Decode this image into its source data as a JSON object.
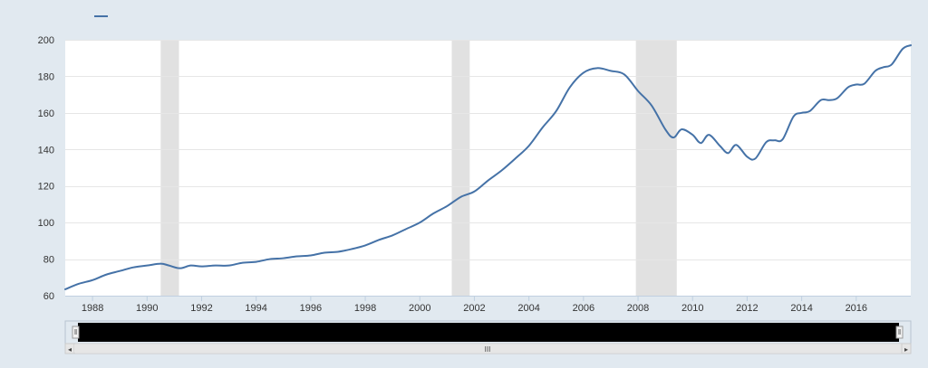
{
  "colors": {
    "page_background": "#e1e9f0",
    "plot_background": "#ffffff",
    "gridline": "#e6e6e6",
    "series_line": "#4572a7",
    "recession_band": "#e1e1e1",
    "navigator_fill": "#000000",
    "scrollbar_track": "#f2f2f2"
  },
  "navigator": {
    "handle_glyph": "‖",
    "scroll_left_icon": "◂",
    "scroll_right_icon": "▸",
    "scroll_grip": "III"
  },
  "chart_data": {
    "type": "line",
    "title": "",
    "xlabel": "",
    "ylabel": "",
    "legend": {
      "placement": "top-left",
      "entries": [
        {
          "name": "",
          "color": "#4572a7"
        }
      ]
    },
    "grid": {
      "horizontal": true,
      "vertical": false
    },
    "xlim": [
      1987.0,
      2018.0
    ],
    "ylim": [
      60,
      200
    ],
    "x_ticks": [
      1988,
      1990,
      1992,
      1994,
      1996,
      1998,
      2000,
      2002,
      2004,
      2006,
      2008,
      2010,
      2012,
      2014,
      2016
    ],
    "y_ticks": [
      60,
      80,
      100,
      120,
      140,
      160,
      180,
      200
    ],
    "recessions": [
      {
        "start": 1990.5,
        "end": 1991.17
      },
      {
        "start": 2001.17,
        "end": 2001.83
      },
      {
        "start": 2007.92,
        "end": 2009.42
      }
    ],
    "series": [
      {
        "name": "",
        "points": [
          [
            1987.0,
            63.5
          ],
          [
            1987.5,
            66.5
          ],
          [
            1988.0,
            68.5
          ],
          [
            1988.5,
            71.5
          ],
          [
            1989.0,
            73.5
          ],
          [
            1989.5,
            75.5
          ],
          [
            1990.0,
            76.5
          ],
          [
            1990.5,
            77.5
          ],
          [
            1990.8,
            76.5
          ],
          [
            1991.2,
            75.0
          ],
          [
            1991.6,
            76.5
          ],
          [
            1992.0,
            76.0
          ],
          [
            1992.5,
            76.5
          ],
          [
            1993.0,
            76.5
          ],
          [
            1993.5,
            78.0
          ],
          [
            1994.0,
            78.5
          ],
          [
            1994.5,
            80.0
          ],
          [
            1995.0,
            80.5
          ],
          [
            1995.5,
            81.5
          ],
          [
            1996.0,
            82.0
          ],
          [
            1996.5,
            83.5
          ],
          [
            1997.0,
            84.0
          ],
          [
            1997.5,
            85.5
          ],
          [
            1998.0,
            87.5
          ],
          [
            1998.5,
            90.5
          ],
          [
            1999.0,
            93.0
          ],
          [
            1999.5,
            96.5
          ],
          [
            2000.0,
            100.0
          ],
          [
            2000.5,
            105.0
          ],
          [
            2001.0,
            109.0
          ],
          [
            2001.5,
            114.0
          ],
          [
            2002.0,
            117.0
          ],
          [
            2002.5,
            123.0
          ],
          [
            2003.0,
            128.5
          ],
          [
            2003.5,
            135.0
          ],
          [
            2004.0,
            142.0
          ],
          [
            2004.5,
            152.0
          ],
          [
            2005.0,
            161.0
          ],
          [
            2005.5,
            174.0
          ],
          [
            2006.0,
            182.0
          ],
          [
            2006.5,
            184.5
          ],
          [
            2007.0,
            183.0
          ],
          [
            2007.5,
            181.0
          ],
          [
            2008.0,
            172.0
          ],
          [
            2008.5,
            164.0
          ],
          [
            2009.0,
            151.0
          ],
          [
            2009.3,
            146.5
          ],
          [
            2009.6,
            151.0
          ],
          [
            2010.0,
            148.0
          ],
          [
            2010.3,
            143.5
          ],
          [
            2010.6,
            148.0
          ],
          [
            2011.0,
            142.0
          ],
          [
            2011.3,
            138.0
          ],
          [
            2011.6,
            142.5
          ],
          [
            2012.0,
            136.0
          ],
          [
            2012.3,
            135.0
          ],
          [
            2012.7,
            144.0
          ],
          [
            2013.0,
            145.0
          ],
          [
            2013.3,
            145.5
          ],
          [
            2013.7,
            158.0
          ],
          [
            2014.0,
            160.0
          ],
          [
            2014.3,
            161.0
          ],
          [
            2014.7,
            167.0
          ],
          [
            2015.0,
            167.0
          ],
          [
            2015.3,
            168.0
          ],
          [
            2015.7,
            174.0
          ],
          [
            2016.0,
            175.5
          ],
          [
            2016.3,
            176.0
          ],
          [
            2016.7,
            183.0
          ],
          [
            2017.0,
            185.0
          ],
          [
            2017.3,
            186.5
          ],
          [
            2017.7,
            195.0
          ],
          [
            2018.0,
            197.0
          ]
        ]
      }
    ]
  }
}
